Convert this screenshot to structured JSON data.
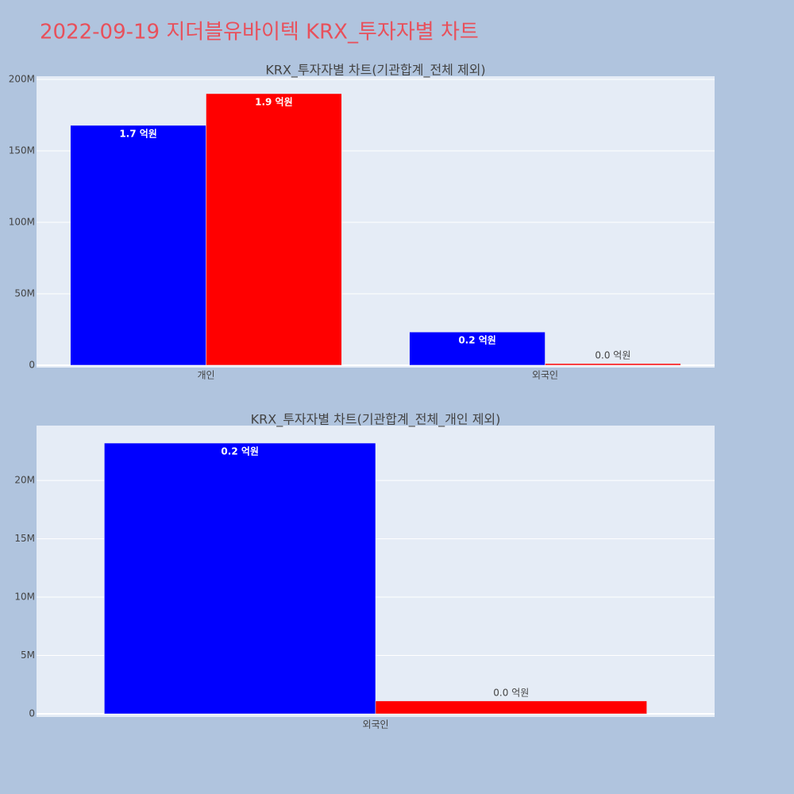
{
  "title": "2022-09-19 지더블유바이텍 KRX_투자자별 차트",
  "chart_data": [
    {
      "type": "bar",
      "title": "KRX_투자자별 차트(기관합계_전체 제외)",
      "categories": [
        "개인",
        "외국인"
      ],
      "series": [
        {
          "color": "#0000ff",
          "values": [
            167800000,
            23200000
          ],
          "value_labels": [
            "1.7 억원",
            "0.2 억원"
          ]
        },
        {
          "color": "#ff0000",
          "values": [
            190000000,
            1100000
          ],
          "value_labels": [
            "1.9 억원",
            "0.0 억원"
          ]
        }
      ],
      "ylim": [
        -1700000,
        202200000
      ],
      "yticks": [
        0,
        {
          "value": 50000000,
          "label": "50M"
        },
        {
          "value": 100000000,
          "label": "100M"
        },
        {
          "value": 150000000,
          "label": "150M"
        },
        {
          "value": 200000000,
          "label": "200M"
        }
      ],
      "grid": true
    },
    {
      "type": "bar",
      "title": "KRX_투자자별 차트(기관합계_전체_개인 제외)",
      "categories": [
        "외국인"
      ],
      "series": [
        {
          "color": "#0000ff",
          "values": [
            23200000
          ],
          "value_labels": [
            "0.2 억원"
          ]
        },
        {
          "color": "#ff0000",
          "values": [
            1100000
          ],
          "value_labels": [
            "0.0 억원"
          ]
        }
      ],
      "ylim": [
        -270000,
        24700000
      ],
      "yticks": [
        0,
        {
          "value": 5000000,
          "label": "5M"
        },
        {
          "value": 10000000,
          "label": "10M"
        },
        {
          "value": 15000000,
          "label": "15M"
        },
        {
          "value": 20000000,
          "label": "20M"
        }
      ],
      "grid": true
    }
  ]
}
